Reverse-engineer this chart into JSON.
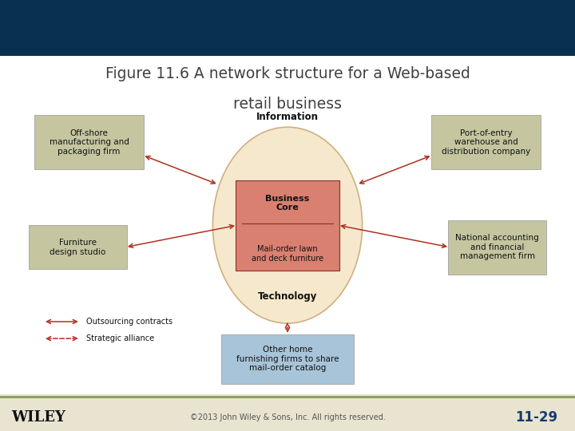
{
  "title_line1": "Figure 11.6 A network structure for a Web-based",
  "title_line2": "retail business",
  "title_color": "#404040",
  "header_bg": "#0A3050",
  "footer_bg": "#E8E4D0",
  "footer_line_color": "#8B9B5A",
  "footer_text": "©2013 John Wiley & Sons, Inc. All rights reserved.",
  "footer_page": "11-29",
  "wiley_text": "WILEY",
  "bg_color": "#FFFFFF",
  "oval_color": "#F5E8CC",
  "oval_edge": "#D0B080",
  "center_box_color": "#D98070",
  "center_box_edge": "#8B3020",
  "center_box_top": "Business\nCore",
  "center_box_bottom": "Mail-order lawn\nand deck furniture",
  "info_label": "Information",
  "tech_label": "Technology",
  "top_left_box": {
    "text": "Off-shore\nmanufacturing and\npackaging firm",
    "color": "#C5C6A0"
  },
  "top_right_box": {
    "text": "Port-of-entry\nwarehouse and\ndistribution company",
    "color": "#C5C6A0"
  },
  "mid_left_box": {
    "text": "Furniture\ndesign studio",
    "color": "#C5C6A0"
  },
  "mid_right_box": {
    "text": "National accounting\nand financial\nmanagement firm",
    "color": "#C5C6A0"
  },
  "bottom_box": {
    "text": "Other home\nfurnishing firms to share\nmail-order catalog",
    "color": "#A8C4D8"
  },
  "arrow_color": "#B03020",
  "legend_outsourcing": "Outsourcing contracts",
  "legend_alliance": "Strategic alliance"
}
